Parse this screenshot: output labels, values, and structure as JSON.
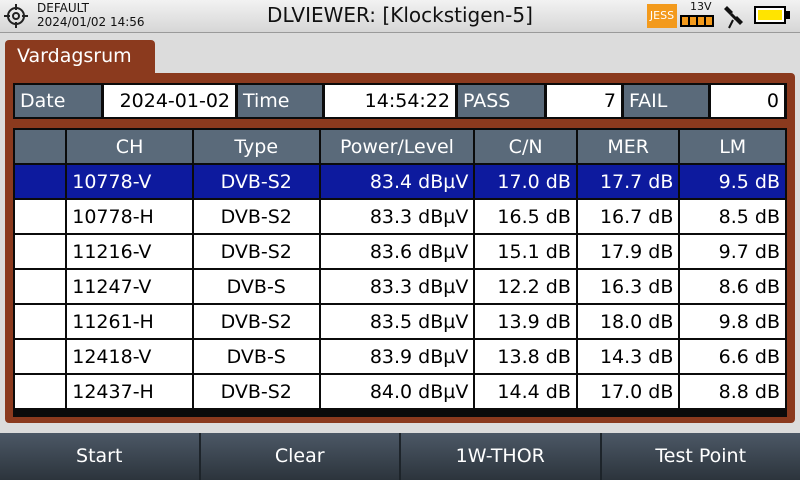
{
  "status_bar": {
    "profile": "DEFAULT",
    "datetime": "2024/01/02 14:56",
    "title": "DLVIEWER: [Klockstigen-5]",
    "jess_badge": "JESS",
    "voltage": "13V",
    "battery_color": "#ffe400"
  },
  "tab": {
    "label": "Vardagsrum"
  },
  "summary": {
    "date_label": "Date",
    "date_value": "2024-01-02",
    "time_label": "Time",
    "time_value": "14:54:22",
    "pass_label": "PASS",
    "pass_value": "7",
    "fail_label": "FAIL",
    "fail_value": "0"
  },
  "table": {
    "headers": [
      "",
      "CH",
      "Type",
      "Power/Level",
      "C/N",
      "MER",
      "LM"
    ],
    "rows": [
      {
        "ch": "10778-V",
        "type": "DVB-S2",
        "power": "83.4 dBµV",
        "cn": "17.0 dB",
        "mer": "17.7 dB",
        "lm": "9.5 dB",
        "selected": true
      },
      {
        "ch": "10778-H",
        "type": "DVB-S2",
        "power": "83.3 dBµV",
        "cn": "16.5 dB",
        "mer": "16.7 dB",
        "lm": "8.5 dB"
      },
      {
        "ch": "11216-V",
        "type": "DVB-S2",
        "power": "83.6 dBµV",
        "cn": "15.1 dB",
        "mer": "17.9 dB",
        "lm": "9.7 dB"
      },
      {
        "ch": "11247-V",
        "type": "DVB-S",
        "power": "83.3 dBµV",
        "cn": "12.2 dB",
        "mer": "16.3 dB",
        "lm": "8.6 dB"
      },
      {
        "ch": "11261-H",
        "type": "DVB-S2",
        "power": "83.5 dBµV",
        "cn": "13.9 dB",
        "mer": "18.0 dB",
        "lm": "9.8 dB"
      },
      {
        "ch": "12418-V",
        "type": "DVB-S",
        "power": "83.9 dBµV",
        "cn": "13.8 dB",
        "mer": "14.3 dB",
        "lm": "6.6 dB"
      },
      {
        "ch": "12437-H",
        "type": "DVB-S2",
        "power": "84.0 dBµV",
        "cn": "14.4 dB",
        "mer": "17.0 dB",
        "lm": "8.8 dB"
      }
    ]
  },
  "softkeys": [
    {
      "label": "Start"
    },
    {
      "label": "Clear"
    },
    {
      "label": "1W-THOR"
    },
    {
      "label": "Test Point"
    }
  ],
  "colors": {
    "panel": "#8b3a1e",
    "header_cell": "#5a6a7a",
    "selected_row": "#0d1a9e",
    "jess_badge": "#f39a1c"
  }
}
